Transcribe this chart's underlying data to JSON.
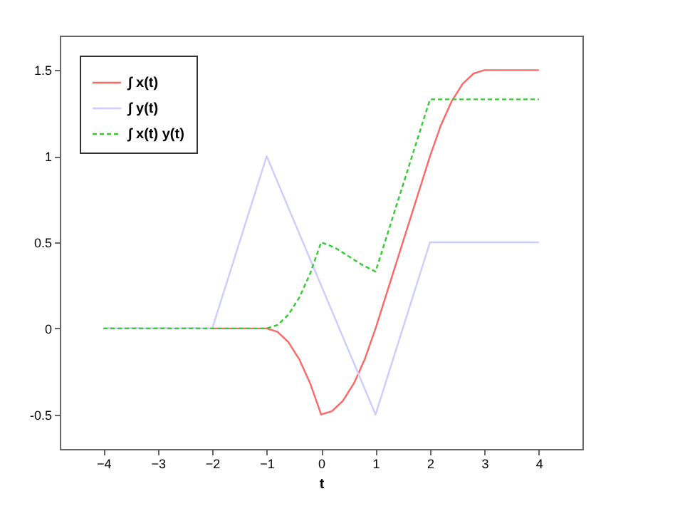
{
  "chart_data": {
    "type": "line",
    "xlabel": "t",
    "xlim": [
      -4.8,
      4.8
    ],
    "ylim": [
      -0.7,
      1.7
    ],
    "xticks": [
      -4,
      -3,
      -2,
      -1,
      0,
      1,
      2,
      3,
      4
    ],
    "yticks": [
      {
        "value": -0.5,
        "label": "-0.5"
      },
      {
        "value": 0,
        "label": "0"
      },
      0.5,
      {
        "value": 1,
        "label": "1"
      },
      1.5
    ],
    "grid": false,
    "legend": "top left",
    "marker": "none",
    "series": [
      {
        "name": "∫ x(t)",
        "color": "#ff6666",
        "line_style": "solid",
        "x": [
          -4,
          -1,
          -0.8,
          -0.6,
          -0.4,
          -0.2,
          0,
          0.2,
          0.4,
          0.6,
          0.8,
          1,
          2,
          2.2,
          2.4,
          2.6,
          2.8,
          3,
          4
        ],
        "values": [
          0,
          0,
          -0.02,
          -0.08,
          -0.18,
          -0.32,
          -0.5,
          -0.48,
          -0.42,
          -0.32,
          -0.18,
          0,
          1,
          1.18,
          1.32,
          1.42,
          1.48,
          1.5,
          1.5
        ]
      },
      {
        "name": "∫ y(t)",
        "color": "#ccccff",
        "line_style": "solid",
        "x": [
          -4,
          -2,
          -1,
          1,
          2,
          4
        ],
        "values": [
          0,
          0,
          1,
          -0.5,
          0.5,
          0.5
        ]
      },
      {
        "name": "∫ x(t) y(t)",
        "color": "#33cc33",
        "line_style": "dashed",
        "x": [
          -4,
          -1,
          -0.8,
          -0.6,
          -0.4,
          -0.2,
          0,
          0.25,
          0.5,
          0.75,
          1,
          2,
          4
        ],
        "values": [
          0,
          0,
          0.02,
          0.08,
          0.18,
          0.32,
          0.5,
          0.47,
          0.42,
          0.37,
          0.33,
          1.33,
          1.33
        ]
      }
    ]
  }
}
